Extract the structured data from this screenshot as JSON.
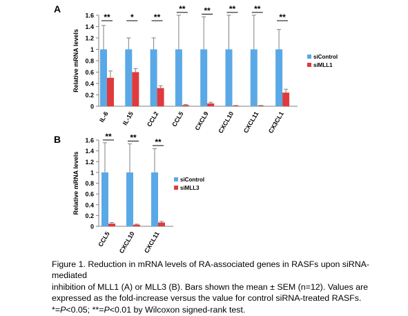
{
  "figure": {
    "caption": {
      "lines": [
        "Figure 1. Reduction in mRNA levels of RA-associated genes in RASFs upon siRNA-mediated",
        "inhibition of MLL1 (A) or MLL3 (B). Bars shown the mean ± SEM (n=12). Values are",
        "expressed as the fold-increase versus the value for control siRNA-treated RASFs."
      ],
      "significance": {
        "star1": "*=",
        "p1": "P",
        "threshold1": "<0.05; ",
        "star2": "**=",
        "p2": "P",
        "threshold2": "<0.01 by Wilcoxon signed-rank test."
      }
    }
  },
  "colors": {
    "siControl": "#5aa9e6",
    "siMLL": "#e03a3c",
    "axis": "#7f7f7f",
    "text": "#000000"
  },
  "chart_data": [
    {
      "type": "bar",
      "panel": "A",
      "ylabel": "Relative mRNA levels",
      "ylim": [
        0,
        1.6
      ],
      "yticks": [
        "0",
        "0.2",
        "0.4",
        "0.6",
        "0.8",
        "1",
        "1.2",
        "1.4",
        "1.6"
      ],
      "categories": [
        "IL-6",
        "IL-15",
        "CCL2",
        "CCL5",
        "CXCL9",
        "CXCL10",
        "CXCL11",
        "CX3CL1"
      ],
      "series": [
        {
          "name": "siControl",
          "values": [
            1,
            1,
            1,
            1,
            1,
            1,
            1,
            1
          ],
          "errors": [
            0.42,
            0.2,
            0.2,
            0.6,
            0.57,
            0.6,
            0.6,
            0.35
          ]
        },
        {
          "name": "siMLL1",
          "values": [
            0.5,
            0.6,
            0.32,
            0.02,
            0.05,
            0.01,
            0.01,
            0.24
          ],
          "errors": [
            0.12,
            0.06,
            0.04,
            0.01,
            0.02,
            0.005,
            0.005,
            0.06
          ]
        }
      ],
      "significance": [
        "**",
        "*",
        "**",
        "**",
        "**",
        "**",
        "**",
        "**"
      ],
      "legend": "right"
    },
    {
      "type": "bar",
      "panel": "B",
      "ylabel": "Relative mRNA levels",
      "ylim": [
        0,
        1.6
      ],
      "yticks": [
        "0",
        "0.2",
        "0.4",
        "0.6",
        "0.8",
        "1",
        "1.2",
        "1.4",
        "1.6"
      ],
      "categories": [
        "CCL5",
        "CXCL10",
        "CXCL11"
      ],
      "series": [
        {
          "name": "siControl",
          "values": [
            1,
            1,
            1
          ],
          "errors": [
            0.55,
            0.53,
            0.44
          ]
        },
        {
          "name": "siMLL3",
          "values": [
            0.05,
            0.03,
            0.07
          ],
          "errors": [
            0.02,
            0.01,
            0.02
          ]
        }
      ],
      "significance": [
        "**",
        "**",
        "**"
      ],
      "legend": "right"
    }
  ]
}
